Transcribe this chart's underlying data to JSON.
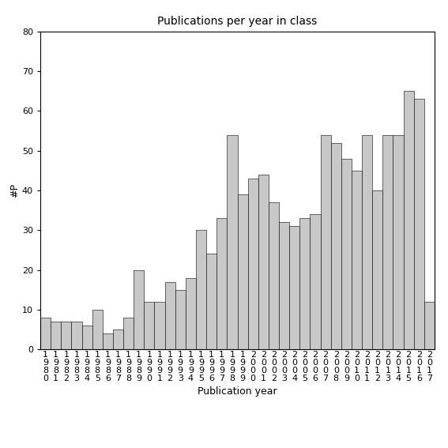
{
  "title": "Publications per year in class",
  "xlabel": "Publication year",
  "ylabel": "#P",
  "bar_color": "#c8c8c8",
  "bar_edgecolor": "#000000",
  "years": [
    "1980",
    "1981",
    "1982",
    "1983",
    "1984",
    "1985",
    "1986",
    "1987",
    "1988",
    "1989",
    "1990",
    "1991",
    "1992",
    "1993",
    "1994",
    "1995",
    "1996",
    "1997",
    "1998",
    "1999",
    "2000",
    "2001",
    "2002",
    "2003",
    "2004",
    "2005",
    "2006",
    "2007",
    "2008",
    "2009",
    "2010",
    "2011",
    "2012",
    "2013",
    "2014",
    "2015",
    "2016",
    "2017"
  ],
  "values": [
    8,
    7,
    7,
    7,
    6,
    10,
    4,
    5,
    8,
    20,
    12,
    12,
    17,
    15,
    18,
    30,
    24,
    33,
    54,
    39,
    43,
    44,
    37,
    32,
    31,
    33,
    34,
    54,
    52,
    48,
    45,
    54,
    40,
    54,
    54,
    65,
    63,
    12
  ],
  "ylim": [
    0,
    80
  ],
  "yticks": [
    0,
    10,
    20,
    30,
    40,
    50,
    60,
    70,
    80
  ],
  "background_color": "#ffffff",
  "title_fontsize": 10,
  "axis_fontsize": 9,
  "tick_fontsize": 8
}
